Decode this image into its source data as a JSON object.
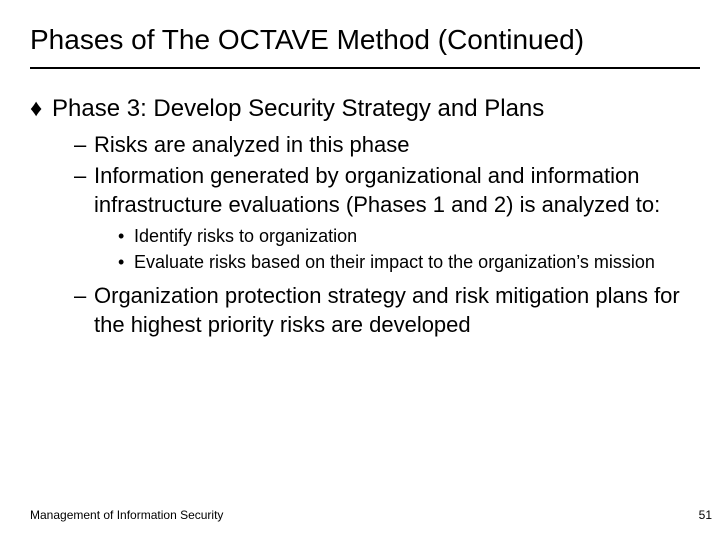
{
  "title": "Phases of The OCTAVE Method (Continued)",
  "bullets": {
    "diamond": "♦",
    "dash": "–",
    "dot": "•"
  },
  "phase3": {
    "heading": "Phase 3: Develop Security Strategy and Plans",
    "sub1": "Risks are analyzed in this phase",
    "sub2": "Information generated by organizational and information infrastructure evaluations (Phases 1 and 2) is analyzed to:",
    "sub2a": "Identify risks to organization",
    "sub2b": "Evaluate risks based on their impact to the organization’s mission",
    "sub3": "Organization protection strategy and risk mitigation plans for the highest priority risks are developed"
  },
  "footer": {
    "left": "Management of Information Security",
    "pageNumber": "51"
  },
  "colors": {
    "text": "#000000",
    "background": "#ffffff",
    "rule": "#000000"
  },
  "fonts": {
    "title_size_pt": 28,
    "lvl1_size_pt": 24,
    "lvl2_size_pt": 22,
    "lvl3_size_pt": 18,
    "footer_size_pt": 12,
    "family": "Arial"
  }
}
